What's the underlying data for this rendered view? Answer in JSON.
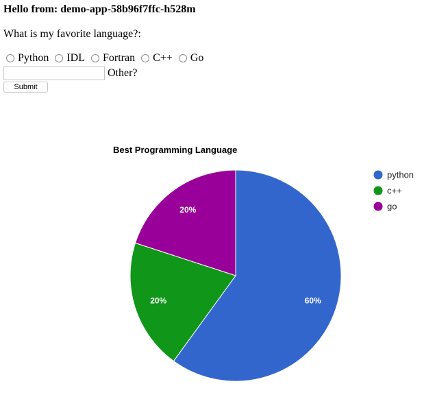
{
  "greeting": "Hello from: demo-app-58b96f7ffc-h528m",
  "question": "What is my favorite language?:",
  "radio_options": [
    "Python",
    "IDL",
    "Fortran",
    "C++",
    "Go"
  ],
  "other_label": "Other?",
  "other_input": {
    "value": "",
    "placeholder": ""
  },
  "submit_label": "Submit",
  "chart_data": {
    "type": "pie",
    "title": "Best Programming Language",
    "legend_position": "right",
    "slices": [
      {
        "label": "python",
        "value": 60,
        "percent_label": "60%",
        "color": "#3366cc"
      },
      {
        "label": "c++",
        "value": 20,
        "percent_label": "20%",
        "color": "#109618"
      },
      {
        "label": "go",
        "value": 20,
        "percent_label": "20%",
        "color": "#990099"
      }
    ]
  }
}
